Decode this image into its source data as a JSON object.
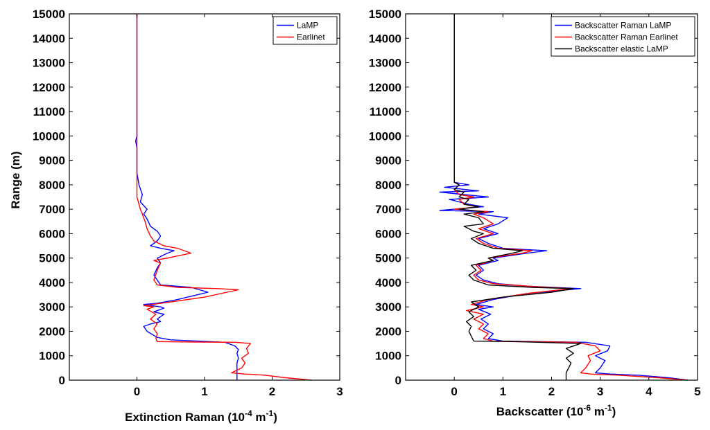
{
  "chart_data": [
    {
      "type": "line",
      "title": "",
      "ylabel": "Range (m)",
      "xlabel": {
        "main": "Extinction Raman (10",
        "exp1": "-4",
        "mid": " m",
        "exp2": "-1",
        "end": ")"
      },
      "xlim": [
        -1,
        3
      ],
      "ylim": [
        0,
        15000
      ],
      "xticks": [
        0,
        1,
        2,
        3
      ],
      "yticks": [
        0,
        1000,
        2000,
        3000,
        4000,
        5000,
        6000,
        7000,
        8000,
        9000,
        10000,
        11000,
        12000,
        13000,
        14000,
        15000
      ],
      "legend_position": "top-right",
      "series": [
        {
          "name": "LaMP",
          "color": "#0000ff",
          "points": [
            [
              1.48,
              0
            ],
            [
              1.48,
              300
            ],
            [
              1.48,
              700
            ],
            [
              1.5,
              900
            ],
            [
              1.48,
              1100
            ],
            [
              1.5,
              1250
            ],
            [
              1.45,
              1400
            ],
            [
              1.3,
              1550
            ],
            [
              0.9,
              1600
            ],
            [
              0.5,
              1650
            ],
            [
              0.3,
              1750
            ],
            [
              0.15,
              2000
            ],
            [
              0.1,
              2200
            ],
            [
              0.2,
              2300
            ],
            [
              0.35,
              2400
            ],
            [
              0.3,
              2500
            ],
            [
              0.4,
              2700
            ],
            [
              0.25,
              2800
            ],
            [
              0.4,
              2950
            ],
            [
              0.35,
              3000
            ],
            [
              0.1,
              3100
            ],
            [
              0.3,
              3150
            ],
            [
              0.6,
              3300
            ],
            [
              0.9,
              3500
            ],
            [
              1.05,
              3600
            ],
            [
              0.8,
              3800
            ],
            [
              0.35,
              3900
            ],
            [
              0.3,
              4100
            ],
            [
              0.25,
              4300
            ],
            [
              0.3,
              4600
            ],
            [
              0.35,
              4800
            ],
            [
              0.3,
              5000
            ],
            [
              0.45,
              5200
            ],
            [
              0.55,
              5300
            ],
            [
              0.35,
              5400
            ],
            [
              0.2,
              5500
            ],
            [
              0.3,
              5700
            ],
            [
              0.35,
              5900
            ],
            [
              0.3,
              6100
            ],
            [
              0.2,
              6300
            ],
            [
              0.15,
              6600
            ],
            [
              0.1,
              6800
            ],
            [
              0.15,
              7000
            ],
            [
              0.05,
              7300
            ],
            [
              0.08,
              7600
            ],
            [
              0.03,
              8000
            ],
            [
              0.0,
              8500
            ],
            [
              0.0,
              9500
            ],
            [
              -0.02,
              9800
            ],
            [
              0.0,
              10000
            ],
            [
              0.0,
              11000
            ],
            [
              0.0,
              15000
            ]
          ]
        },
        {
          "name": "Earlinet",
          "color": "#ff0000",
          "points": [
            [
              2.58,
              0
            ],
            [
              2.2,
              100
            ],
            [
              1.9,
              200
            ],
            [
              1.6,
              250
            ],
            [
              1.4,
              300
            ],
            [
              1.55,
              500
            ],
            [
              1.6,
              700
            ],
            [
              1.55,
              900
            ],
            [
              1.65,
              1100
            ],
            [
              1.62,
              1300
            ],
            [
              1.68,
              1500
            ],
            [
              1.45,
              1550
            ],
            [
              0.9,
              1560
            ],
            [
              0.3,
              1580
            ],
            [
              0.28,
              1700
            ],
            [
              0.3,
              1900
            ],
            [
              0.25,
              2100
            ],
            [
              0.3,
              2300
            ],
            [
              0.2,
              2500
            ],
            [
              0.28,
              2700
            ],
            [
              0.15,
              2900
            ],
            [
              0.25,
              3000
            ],
            [
              0.1,
              3050
            ],
            [
              0.5,
              3200
            ],
            [
              1.0,
              3400
            ],
            [
              1.5,
              3700
            ],
            [
              1.2,
              3750
            ],
            [
              0.6,
              3800
            ],
            [
              0.3,
              3900
            ],
            [
              0.25,
              4100
            ],
            [
              0.3,
              4500
            ],
            [
              0.35,
              4800
            ],
            [
              0.25,
              4900
            ],
            [
              0.45,
              5000
            ],
            [
              0.8,
              5200
            ],
            [
              0.6,
              5400
            ],
            [
              0.4,
              5500
            ],
            [
              0.25,
              5700
            ],
            [
              0.2,
              5900
            ],
            [
              0.15,
              6200
            ],
            [
              0.12,
              6500
            ],
            [
              0.08,
              6800
            ],
            [
              0.05,
              7000
            ],
            [
              0.0,
              7500
            ],
            [
              0.0,
              8000
            ],
            [
              0.0,
              15000
            ]
          ]
        }
      ]
    },
    {
      "type": "line",
      "title": "",
      "ylabel": "",
      "xlabel": {
        "main": "Backscatter (10",
        "exp1": "-6",
        "mid": " m",
        "exp2": "-1",
        "end": ")"
      },
      "xlim": [
        -1,
        5
      ],
      "ylim": [
        0,
        15000
      ],
      "xticks": [
        0,
        1,
        2,
        3,
        4,
        5
      ],
      "yticks": [
        0,
        1000,
        2000,
        3000,
        4000,
        5000,
        6000,
        7000,
        8000,
        9000,
        10000,
        11000,
        12000,
        13000,
        14000,
        15000
      ],
      "legend_position": "top-right",
      "series": [
        {
          "name": "Backscatter Raman LaMP",
          "color": "#0000ff",
          "points": [
            [
              4.8,
              0
            ],
            [
              4.4,
              100
            ],
            [
              3.8,
              200
            ],
            [
              3.2,
              250
            ],
            [
              2.9,
              300
            ],
            [
              3.0,
              500
            ],
            [
              3.1,
              800
            ],
            [
              2.9,
              1000
            ],
            [
              3.15,
              1200
            ],
            [
              3.2,
              1400
            ],
            [
              2.7,
              1550
            ],
            [
              1.0,
              1600
            ],
            [
              0.7,
              1700
            ],
            [
              0.8,
              1900
            ],
            [
              0.6,
              2100
            ],
            [
              0.7,
              2300
            ],
            [
              0.55,
              2500
            ],
            [
              0.75,
              2700
            ],
            [
              0.5,
              2900
            ],
            [
              0.8,
              3000
            ],
            [
              0.45,
              3100
            ],
            [
              0.8,
              3300
            ],
            [
              1.5,
              3550
            ],
            [
              2.6,
              3750
            ],
            [
              1.5,
              3850
            ],
            [
              0.9,
              3950
            ],
            [
              0.6,
              4100
            ],
            [
              0.45,
              4300
            ],
            [
              0.6,
              4500
            ],
            [
              0.5,
              4700
            ],
            [
              0.9,
              4900
            ],
            [
              0.8,
              5000
            ],
            [
              1.5,
              5200
            ],
            [
              1.9,
              5300
            ],
            [
              1.0,
              5400
            ],
            [
              0.7,
              5600
            ],
            [
              0.5,
              5800
            ],
            [
              0.9,
              6000
            ],
            [
              0.6,
              6200
            ],
            [
              0.9,
              6400
            ],
            [
              1.1,
              6650
            ],
            [
              0.5,
              6800
            ],
            [
              0.8,
              6900
            ],
            [
              -0.3,
              6950
            ],
            [
              0.6,
              7100
            ],
            [
              0.3,
              7200
            ],
            [
              -0.1,
              7400
            ],
            [
              0.7,
              7500
            ],
            [
              0.2,
              7600
            ],
            [
              -0.3,
              7700
            ],
            [
              0.5,
              7750
            ],
            [
              -0.2,
              7900
            ],
            [
              0.3,
              8000
            ],
            [
              0.0,
              8100
            ],
            [
              0.0,
              9000
            ],
            [
              0.0,
              15000
            ]
          ]
        },
        {
          "name": "Backscatter Raman Earlinet",
          "color": "#ff0000",
          "points": [
            [
              4.8,
              0
            ],
            [
              4.2,
              100
            ],
            [
              3.4,
              200
            ],
            [
              2.8,
              250
            ],
            [
              2.6,
              300
            ],
            [
              2.7,
              500
            ],
            [
              2.8,
              800
            ],
            [
              2.75,
              1000
            ],
            [
              3.0,
              1200
            ],
            [
              2.9,
              1400
            ],
            [
              2.5,
              1550
            ],
            [
              0.8,
              1600
            ],
            [
              0.6,
              1700
            ],
            [
              0.7,
              1900
            ],
            [
              0.5,
              2100
            ],
            [
              0.6,
              2300
            ],
            [
              0.4,
              2500
            ],
            [
              0.6,
              2700
            ],
            [
              0.25,
              2850
            ],
            [
              0.6,
              3000
            ],
            [
              0.35,
              3100
            ],
            [
              0.7,
              3300
            ],
            [
              1.5,
              3550
            ],
            [
              2.4,
              3750
            ],
            [
              1.5,
              3850
            ],
            [
              0.8,
              3950
            ],
            [
              0.5,
              4100
            ],
            [
              0.4,
              4300
            ],
            [
              0.55,
              4500
            ],
            [
              0.45,
              4700
            ],
            [
              0.8,
              4900
            ],
            [
              0.7,
              5000
            ],
            [
              1.4,
              5200
            ],
            [
              1.6,
              5300
            ],
            [
              0.9,
              5400
            ],
            [
              0.6,
              5600
            ],
            [
              0.45,
              5800
            ],
            [
              0.8,
              6000
            ],
            [
              0.5,
              6200
            ],
            [
              0.8,
              6400
            ],
            [
              0.6,
              6650
            ],
            [
              0.4,
              6800
            ],
            [
              0.7,
              6900
            ],
            [
              0.0,
              7000
            ],
            [
              0.5,
              7100
            ],
            [
              0.2,
              7200
            ],
            [
              0.1,
              7400
            ],
            [
              0.4,
              7500
            ],
            [
              0.1,
              7600
            ],
            [
              0.0,
              7800
            ],
            [
              0.1,
              8000
            ],
            [
              0.0,
              8100
            ],
            [
              0.0,
              15000
            ]
          ]
        },
        {
          "name": "Backscatter elastic LaMP",
          "color": "#000000",
          "points": [
            [
              2.3,
              0
            ],
            [
              2.3,
              300
            ],
            [
              2.35,
              500
            ],
            [
              2.4,
              700
            ],
            [
              2.3,
              900
            ],
            [
              2.45,
              1100
            ],
            [
              2.3,
              1300
            ],
            [
              2.6,
              1500
            ],
            [
              1.2,
              1580
            ],
            [
              0.4,
              1600
            ],
            [
              0.35,
              1800
            ],
            [
              0.3,
              2000
            ],
            [
              0.35,
              2200
            ],
            [
              0.25,
              2400
            ],
            [
              0.4,
              2600
            ],
            [
              0.3,
              2800
            ],
            [
              0.5,
              3000
            ],
            [
              0.35,
              3200
            ],
            [
              1.0,
              3400
            ],
            [
              2.0,
              3600
            ],
            [
              2.45,
              3750
            ],
            [
              1.6,
              3800
            ],
            [
              0.7,
              3900
            ],
            [
              0.4,
              4100
            ],
            [
              0.3,
              4300
            ],
            [
              0.45,
              4500
            ],
            [
              0.35,
              4700
            ],
            [
              0.8,
              4900
            ],
            [
              0.7,
              5000
            ],
            [
              1.2,
              5200
            ],
            [
              1.4,
              5300
            ],
            [
              0.8,
              5400
            ],
            [
              0.5,
              5600
            ],
            [
              0.35,
              5800
            ],
            [
              0.6,
              6000
            ],
            [
              0.4,
              6100
            ],
            [
              0.2,
              6300
            ],
            [
              0.6,
              6400
            ],
            [
              0.5,
              6650
            ],
            [
              0.2,
              6800
            ],
            [
              0.6,
              6900
            ],
            [
              0.1,
              7000
            ],
            [
              0.5,
              7100
            ],
            [
              0.2,
              7200
            ],
            [
              0.3,
              7400
            ],
            [
              0.1,
              7500
            ],
            [
              0.2,
              7700
            ],
            [
              0.0,
              7800
            ],
            [
              0.1,
              8000
            ],
            [
              0.0,
              8100
            ],
            [
              0.0,
              15000
            ]
          ]
        }
      ]
    }
  ]
}
